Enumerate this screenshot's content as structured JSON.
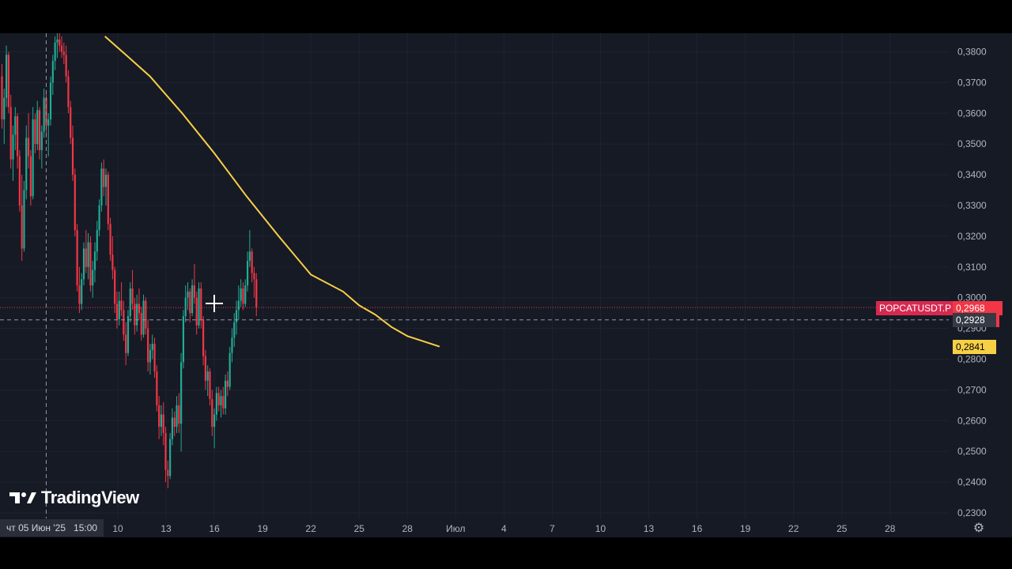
{
  "chart_data": {
    "type": "candlestick",
    "symbol": "POPCATUSDT.P",
    "y_axis": {
      "ticks": [
        "0,3800",
        "0,3700",
        "0,3600",
        "0,3500",
        "0,3400",
        "0,3300",
        "0,3200",
        "0,3100",
        "0,3000",
        "0,2900",
        "0,2800",
        "0,2700",
        "0,2600",
        "0,2500",
        "0,2400",
        "0,2300"
      ],
      "range": [
        0.2285,
        0.3845
      ],
      "side": "right"
    },
    "x_axis": {
      "ticks": [
        "10",
        "13",
        "16",
        "19",
        "22",
        "25",
        "28",
        "Июл",
        "4",
        "7",
        "10",
        "13",
        "16",
        "19",
        "22",
        "25",
        "28"
      ],
      "tick_day_index": [
        0,
        3,
        6,
        9,
        12,
        15,
        18,
        21,
        24,
        27,
        30,
        33,
        36,
        39,
        42,
        45,
        48
      ]
    },
    "price_tags": {
      "last_price": "0,2968",
      "crosshair_price": "0,2928",
      "ma_value": "0,2841",
      "hidden_suffix": "3"
    },
    "crosshair_label": "чт 05 Июн '25",
    "crosshair_time": "15:00",
    "moving_average": {
      "color": "#f7d046",
      "points": [
        [
          -0.8,
          0.385
        ],
        [
          0.5,
          0.379
        ],
        [
          2,
          0.372
        ],
        [
          4,
          0.36
        ],
        [
          6,
          0.347
        ],
        [
          8,
          0.333
        ],
        [
          10,
          0.32
        ],
        [
          12,
          0.3075
        ],
        [
          14,
          0.302
        ],
        [
          15,
          0.2975
        ],
        [
          16,
          0.2945
        ],
        [
          17,
          0.2905
        ],
        [
          18,
          0.2875
        ],
        [
          19,
          0.2858
        ],
        [
          20,
          0.2841
        ]
      ]
    },
    "candles_note_ohlc": "[open, high, low, close] sampled every 3h from day -8 to day 20.5",
    "candles_ohlc": [
      [
        0.372,
        0.376,
        0.355,
        0.358
      ],
      [
        0.358,
        0.368,
        0.35,
        0.365
      ],
      [
        0.365,
        0.382,
        0.362,
        0.379
      ],
      [
        0.379,
        0.38,
        0.36,
        0.362
      ],
      [
        0.362,
        0.366,
        0.342,
        0.345
      ],
      [
        0.345,
        0.356,
        0.338,
        0.353
      ],
      [
        0.353,
        0.362,
        0.348,
        0.359
      ],
      [
        0.359,
        0.36,
        0.342,
        0.346
      ],
      [
        0.346,
        0.348,
        0.328,
        0.33
      ],
      [
        0.33,
        0.34,
        0.312,
        0.316
      ],
      [
        0.316,
        0.338,
        0.315,
        0.335
      ],
      [
        0.335,
        0.356,
        0.332,
        0.352
      ],
      [
        0.352,
        0.36,
        0.342,
        0.346
      ],
      [
        0.346,
        0.348,
        0.33,
        0.333
      ],
      [
        0.333,
        0.362,
        0.332,
        0.358
      ],
      [
        0.358,
        0.36,
        0.347,
        0.35
      ],
      [
        0.35,
        0.364,
        0.348,
        0.361
      ],
      [
        0.361,
        0.362,
        0.345,
        0.348
      ],
      [
        0.348,
        0.356,
        0.342,
        0.354
      ],
      [
        0.354,
        0.368,
        0.352,
        0.365
      ],
      [
        0.365,
        0.367,
        0.352,
        0.356
      ],
      [
        0.356,
        0.36,
        0.346,
        0.358
      ],
      [
        0.358,
        0.372,
        0.356,
        0.37
      ],
      [
        0.37,
        0.379,
        0.366,
        0.377
      ],
      [
        0.377,
        0.385,
        0.374,
        0.383
      ],
      [
        0.383,
        0.386,
        0.378,
        0.384
      ],
      [
        0.384,
        0.386,
        0.38,
        0.382
      ],
      [
        0.382,
        0.385,
        0.378,
        0.38
      ],
      [
        0.38,
        0.383,
        0.376,
        0.379
      ],
      [
        0.379,
        0.382,
        0.37,
        0.372
      ],
      [
        0.372,
        0.374,
        0.36,
        0.362
      ],
      [
        0.362,
        0.364,
        0.35,
        0.352
      ],
      [
        0.352,
        0.356,
        0.338,
        0.34
      ],
      [
        0.34,
        0.342,
        0.32,
        0.322
      ],
      [
        0.322,
        0.324,
        0.302,
        0.304
      ],
      [
        0.304,
        0.31,
        0.295,
        0.298
      ],
      [
        0.298,
        0.308,
        0.296,
        0.306
      ],
      [
        0.306,
        0.318,
        0.304,
        0.316
      ],
      [
        0.316,
        0.322,
        0.308,
        0.31
      ],
      [
        0.31,
        0.321,
        0.306,
        0.318
      ],
      [
        0.318,
        0.32,
        0.302,
        0.304
      ],
      [
        0.304,
        0.312,
        0.3,
        0.309
      ],
      [
        0.309,
        0.318,
        0.305,
        0.315
      ],
      [
        0.315,
        0.325,
        0.312,
        0.322
      ],
      [
        0.322,
        0.332,
        0.32,
        0.33
      ],
      [
        0.33,
        0.344,
        0.328,
        0.342
      ],
      [
        0.342,
        0.345,
        0.333,
        0.336
      ],
      [
        0.336,
        0.342,
        0.33,
        0.34
      ],
      [
        0.34,
        0.341,
        0.322,
        0.324
      ],
      [
        0.324,
        0.326,
        0.312,
        0.314
      ],
      [
        0.314,
        0.32,
        0.306,
        0.309
      ],
      [
        0.309,
        0.31,
        0.295,
        0.298
      ],
      [
        0.298,
        0.302,
        0.29,
        0.293
      ],
      [
        0.293,
        0.302,
        0.291,
        0.299
      ],
      [
        0.299,
        0.305,
        0.294,
        0.296
      ],
      [
        0.296,
        0.299,
        0.286,
        0.288
      ],
      [
        0.288,
        0.292,
        0.278,
        0.282
      ],
      [
        0.282,
        0.296,
        0.281,
        0.294
      ],
      [
        0.294,
        0.305,
        0.292,
        0.303
      ],
      [
        0.303,
        0.309,
        0.296,
        0.298
      ],
      [
        0.298,
        0.3,
        0.288,
        0.291
      ],
      [
        0.291,
        0.301,
        0.289,
        0.298
      ],
      [
        0.298,
        0.303,
        0.293,
        0.295
      ],
      [
        0.295,
        0.297,
        0.286,
        0.288
      ],
      [
        0.288,
        0.301,
        0.287,
        0.299
      ],
      [
        0.299,
        0.3,
        0.288,
        0.29
      ],
      [
        0.29,
        0.293,
        0.276,
        0.279
      ],
      [
        0.279,
        0.285,
        0.275,
        0.283
      ],
      [
        0.283,
        0.288,
        0.28,
        0.285
      ],
      [
        0.285,
        0.287,
        0.274,
        0.276
      ],
      [
        0.276,
        0.278,
        0.263,
        0.265
      ],
      [
        0.265,
        0.268,
        0.254,
        0.258
      ],
      [
        0.258,
        0.265,
        0.255,
        0.262
      ],
      [
        0.262,
        0.266,
        0.252,
        0.256
      ],
      [
        0.256,
        0.258,
        0.24,
        0.244
      ],
      [
        0.244,
        0.247,
        0.238,
        0.242
      ],
      [
        0.242,
        0.256,
        0.241,
        0.254
      ],
      [
        0.254,
        0.264,
        0.252,
        0.261
      ],
      [
        0.261,
        0.263,
        0.255,
        0.258
      ],
      [
        0.258,
        0.268,
        0.256,
        0.265
      ],
      [
        0.265,
        0.269,
        0.256,
        0.259
      ],
      [
        0.259,
        0.282,
        0.25,
        0.279
      ],
      [
        0.279,
        0.296,
        0.277,
        0.294
      ],
      [
        0.294,
        0.304,
        0.292,
        0.3
      ],
      [
        0.3,
        0.305,
        0.296,
        0.302
      ],
      [
        0.302,
        0.303,
        0.292,
        0.295
      ],
      [
        0.295,
        0.306,
        0.294,
        0.304
      ],
      [
        0.304,
        0.311,
        0.298,
        0.3
      ],
      [
        0.3,
        0.302,
        0.288,
        0.291
      ],
      [
        0.291,
        0.305,
        0.29,
        0.303
      ],
      [
        0.303,
        0.305,
        0.29,
        0.293
      ],
      [
        0.293,
        0.294,
        0.278,
        0.281
      ],
      [
        0.281,
        0.283,
        0.27,
        0.273
      ],
      [
        0.273,
        0.278,
        0.268,
        0.276
      ],
      [
        0.276,
        0.277,
        0.265,
        0.267
      ],
      [
        0.267,
        0.27,
        0.255,
        0.258
      ],
      [
        0.258,
        0.264,
        0.251,
        0.262
      ],
      [
        0.262,
        0.271,
        0.26,
        0.269
      ],
      [
        0.269,
        0.271,
        0.263,
        0.265
      ],
      [
        0.265,
        0.27,
        0.261,
        0.268
      ],
      [
        0.268,
        0.271,
        0.262,
        0.264
      ],
      [
        0.264,
        0.275,
        0.262,
        0.273
      ],
      [
        0.273,
        0.276,
        0.268,
        0.271
      ],
      [
        0.271,
        0.284,
        0.27,
        0.282
      ],
      [
        0.282,
        0.29,
        0.279,
        0.287
      ],
      [
        0.287,
        0.295,
        0.284,
        0.292
      ],
      [
        0.292,
        0.299,
        0.288,
        0.296
      ],
      [
        0.296,
        0.304,
        0.293,
        0.299
      ],
      [
        0.299,
        0.306,
        0.297,
        0.303
      ],
      [
        0.303,
        0.305,
        0.296,
        0.298
      ],
      [
        0.298,
        0.306,
        0.297,
        0.304
      ],
      [
        0.304,
        0.315,
        0.302,
        0.312
      ],
      [
        0.312,
        0.322,
        0.31,
        0.315
      ],
      [
        0.315,
        0.316,
        0.305,
        0.308
      ],
      [
        0.308,
        0.31,
        0.3,
        0.306
      ],
      [
        0.306,
        0.308,
        0.294,
        0.2968
      ]
    ],
    "colors": {
      "up": "#22ab94",
      "down": "#f23645",
      "background": "#161a25"
    }
  },
  "branding": {
    "logo_text": "TradingView"
  },
  "icons": {
    "logo": "tradingview-logo-icon",
    "settings": "gear-icon",
    "crosshair": "crosshair-cursor-icon"
  }
}
